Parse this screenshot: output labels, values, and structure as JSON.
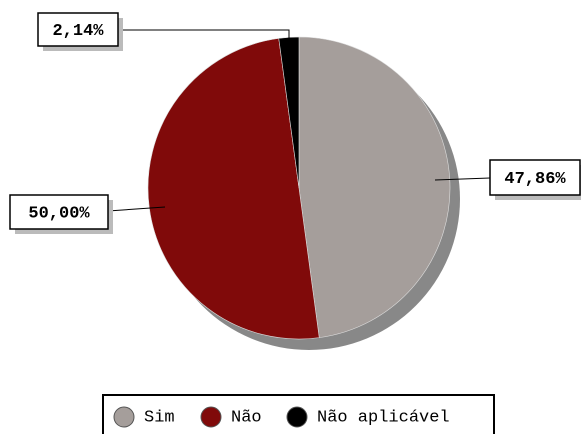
{
  "chart_data": {
    "type": "pie",
    "categories": [
      "Sim",
      "Não",
      "Não aplicável"
    ],
    "values": [
      47.86,
      50.0,
      2.14
    ],
    "value_labels": [
      "47,86%",
      "50,00%",
      "2,14%"
    ],
    "colors": [
      "#a59e9b",
      "#800a0a",
      "#000000"
    ],
    "legend": "bottom"
  }
}
